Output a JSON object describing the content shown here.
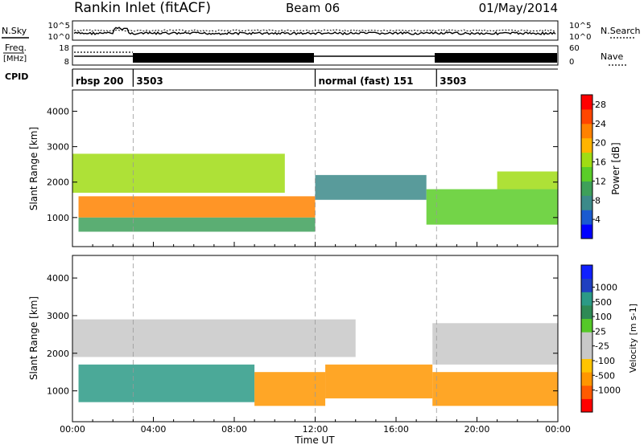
{
  "header": {
    "station": "Rankin Inlet (fitACF)",
    "beam": "Beam 06",
    "date": "01/May/2014"
  },
  "strip_labels": {
    "nsky": "N.Sky",
    "nsearch": "N.Search",
    "freq": "Freq.",
    "freq_unit": "[MHz]",
    "nave": "Nave",
    "cpid": "CPID",
    "noise_ticks": [
      "10^5",
      "10^0"
    ],
    "freq_ticks": [
      "18",
      "8"
    ],
    "nave_ticks": [
      "60",
      "0"
    ]
  },
  "cpid_segments": [
    {
      "start_hour": 0,
      "label": "rbsp 200"
    },
    {
      "start_hour": 3,
      "label": "3503"
    },
    {
      "start_hour": 12,
      "label": "normal (fast) 151"
    },
    {
      "start_hour": 18,
      "label": "3503"
    }
  ],
  "colors": {
    "power_scale": [
      "#0000ff",
      "#1a5ad0",
      "#3c8a8a",
      "#3ea05a",
      "#5acd28",
      "#a0dc14",
      "#ffb400",
      "#ff8200",
      "#ff4600",
      "#ff0000"
    ],
    "velocity_scale": [
      "#ff0000",
      "#ff5a00",
      "#ff9600",
      "#ffc400",
      "#c8c8c8",
      "#c8c8c8",
      "#55c828",
      "#2e8a55",
      "#2c9a86",
      "#2040c0",
      "#1020ff"
    ]
  },
  "chart_data": [
    {
      "type": "heatmap",
      "panel": "power",
      "ylabel": "Slant Range [km]",
      "x_range": [
        0,
        24
      ],
      "ylim": [
        180,
        4600
      ],
      "y_ticks": [
        1000,
        2000,
        3000,
        4000
      ],
      "colorbar": {
        "label": "Power [dB]",
        "ticks": [
          4,
          8,
          12,
          16,
          20,
          24,
          28
        ],
        "range": [
          0,
          30
        ]
      },
      "bands": [
        {
          "t0": 0.0,
          "t1": 10.5,
          "r0": 1700,
          "r1": 2800,
          "value": 16
        },
        {
          "t0": 0.3,
          "t1": 12.0,
          "r0": 1000,
          "r1": 1600,
          "value": 22
        },
        {
          "t0": 0.3,
          "t1": 12.0,
          "r0": 600,
          "r1": 1000,
          "value": 10
        },
        {
          "t0": 12.0,
          "t1": 17.5,
          "r0": 1500,
          "r1": 2200,
          "value": 8
        },
        {
          "t0": 17.5,
          "t1": 24.0,
          "r0": 800,
          "r1": 1800,
          "value": 14
        },
        {
          "t0": 21.0,
          "t1": 24.0,
          "r0": 1800,
          "r1": 2300,
          "value": 16
        }
      ]
    },
    {
      "type": "heatmap",
      "panel": "velocity",
      "xlabel": "Time UT",
      "ylabel": "Slant Range [km]",
      "x_range": [
        0,
        24
      ],
      "x_ticks": [
        "00:00",
        "04:00",
        "08:00",
        "12:00",
        "16:00",
        "20:00",
        "00:00"
      ],
      "ylim": [
        180,
        4600
      ],
      "y_ticks": [
        1000,
        2000,
        3000,
        4000
      ],
      "colorbar": {
        "label": "Velocity [m s-1]",
        "ticks": [
          -1000,
          -500,
          -100,
          -25,
          25,
          100,
          500,
          1000
        ]
      },
      "bands": [
        {
          "t0": 0.0,
          "t1": 14.0,
          "r0": 1900,
          "r1": 2900,
          "value": 0
        },
        {
          "t0": 0.3,
          "t1": 9.0,
          "r0": 700,
          "r1": 1700,
          "value": 300
        },
        {
          "t0": 9.0,
          "t1": 12.5,
          "r0": 600,
          "r1": 1500,
          "value": -300
        },
        {
          "t0": 12.5,
          "t1": 17.8,
          "r0": 800,
          "r1": 1700,
          "value": -200
        },
        {
          "t0": 17.8,
          "t1": 24.0,
          "r0": 600,
          "r1": 1500,
          "value": -400
        },
        {
          "t0": 17.8,
          "t1": 24.0,
          "r0": 1700,
          "r1": 2800,
          "value": 0
        }
      ]
    }
  ]
}
